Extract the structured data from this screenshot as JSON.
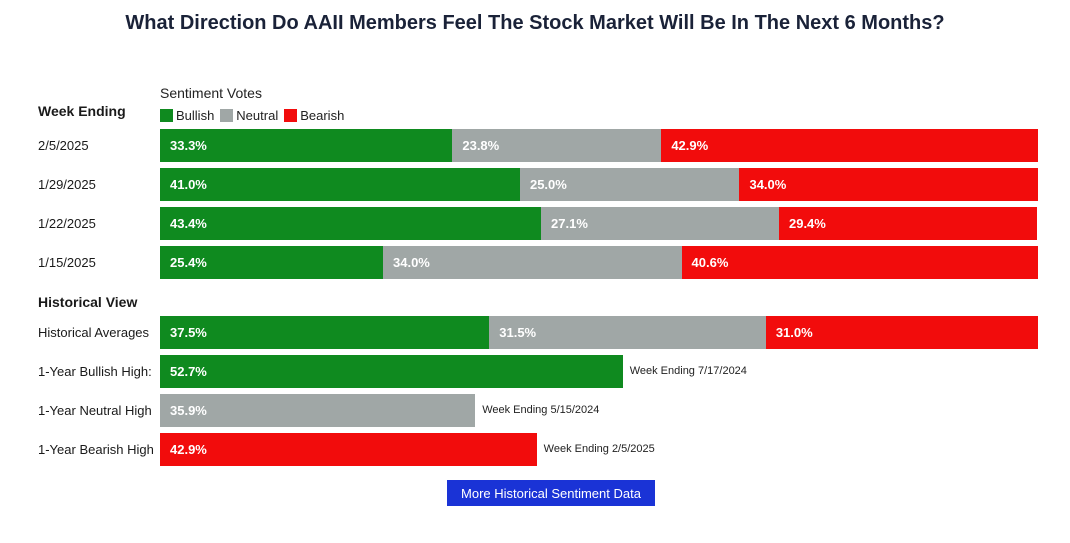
{
  "title": "What Direction Do AAII Members Feel The Stock Market Will Be In The Next 6 Months?",
  "legend": {
    "heading": "Sentiment Votes",
    "items": [
      "Bullish",
      "Neutral",
      "Bearish"
    ]
  },
  "colors": {
    "bullish": "#0f8a1f",
    "neutral": "#a0a7a6",
    "bearish": "#f20c0c",
    "button": "#1a33d6"
  },
  "sections": {
    "week_ending": "Week Ending",
    "historical": "Historical View"
  },
  "button": {
    "label": "More Historical Sentiment Data"
  },
  "chart_data": {
    "type": "bar",
    "stacked": true,
    "orientation": "horizontal",
    "series_names": [
      "Bullish",
      "Neutral",
      "Bearish"
    ],
    "weekly": [
      {
        "label": "2/5/2025",
        "values": [
          33.3,
          23.8,
          42.9
        ],
        "display": [
          "33.3%",
          "23.8%",
          "42.9%"
        ]
      },
      {
        "label": "1/29/2025",
        "values": [
          41.0,
          25.0,
          34.0
        ],
        "display": [
          "41.0%",
          "25.0%",
          "34.0%"
        ]
      },
      {
        "label": "1/22/2025",
        "values": [
          43.4,
          27.1,
          29.4
        ],
        "display": [
          "43.4%",
          "27.1%",
          "29.4%"
        ]
      },
      {
        "label": "1/15/2025",
        "values": [
          25.4,
          34.0,
          40.6
        ],
        "display": [
          "25.4%",
          "34.0%",
          "40.6%"
        ]
      }
    ],
    "historical_averages": {
      "label": "Historical Averages",
      "values": [
        37.5,
        31.5,
        31.0
      ],
      "display": [
        "37.5%",
        "31.5%",
        "31.0%"
      ]
    },
    "highs": [
      {
        "label": "1-Year Bullish High:",
        "series": "Bullish",
        "value": 52.7,
        "display": "52.7%",
        "note": "Week Ending 7/17/2024"
      },
      {
        "label": "1-Year Neutral High",
        "series": "Neutral",
        "value": 35.9,
        "display": "35.9%",
        "note": "Week Ending 5/15/2024"
      },
      {
        "label": "1-Year Bearish High",
        "series": "Bearish",
        "value": 42.9,
        "display": "42.9%",
        "note": "Week Ending 2/5/2025"
      }
    ]
  }
}
